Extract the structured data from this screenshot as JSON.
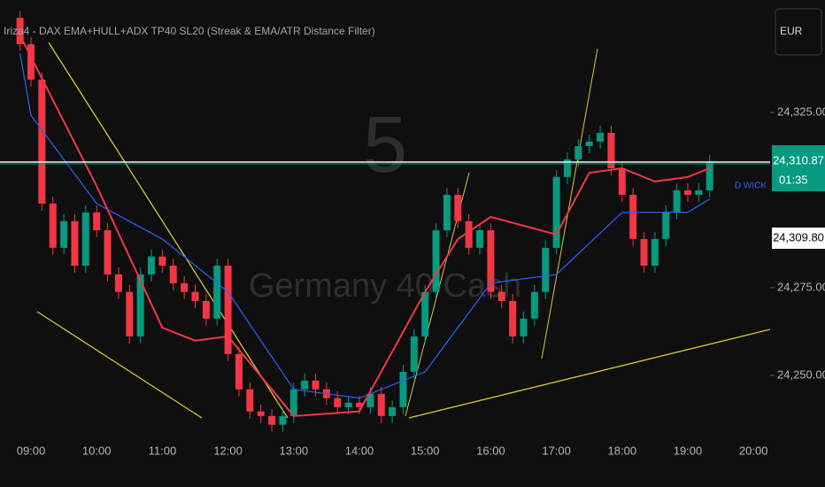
{
  "chart_data": {
    "type": "candlestick",
    "title": "Iriza4 - DAX EMA+HULL+ADX TP40 SL20 (Streak & EMA/ATR Distance Filter)",
    "watermark_interval": "5",
    "watermark_symbol": "Germany 40 Cash",
    "currency": "EUR",
    "up_color": "#089981",
    "down_color": "#f23645",
    "x": [
      "08:50",
      "09:00",
      "09:10",
      "09:20",
      "09:30",
      "09:40",
      "09:50",
      "10:00",
      "10:10",
      "10:20",
      "10:30",
      "10:40",
      "10:50",
      "11:00",
      "11:10",
      "11:20",
      "11:30",
      "11:40",
      "11:50",
      "12:00",
      "12:10",
      "12:20",
      "12:30",
      "12:40",
      "12:50",
      "13:00",
      "13:10",
      "13:20",
      "13:30",
      "13:40",
      "13:50",
      "14:00",
      "14:10",
      "14:20",
      "14:30",
      "14:40",
      "14:50",
      "15:00",
      "15:10",
      "15:20",
      "15:30",
      "15:40",
      "15:50",
      "16:00",
      "16:10",
      "16:20",
      "16:30",
      "16:40",
      "16:50",
      "17:00",
      "17:10",
      "17:20",
      "17:30",
      "17:40",
      "17:50",
      "18:00",
      "18:10",
      "18:20",
      "18:30",
      "18:40",
      "18:50",
      "19:00",
      "19:10",
      "19:20"
    ],
    "open": [
      24352.0,
      24344.5,
      24334.4,
      24299.0,
      24286.4,
      24294.0,
      24281.3,
      24296.5,
      24291.4,
      24278.8,
      24273.8,
      24261.1,
      24278.8,
      24283.9,
      24281.3,
      24276.3,
      24273.8,
      24271.2,
      24266.2,
      24281.3,
      24256.1,
      24246.0,
      24239.7,
      24238.4,
      24235.9,
      24238.4,
      24246.0,
      24248.5,
      24246.0,
      24243.5,
      24240.9,
      24242.2,
      24240.9,
      24244.7,
      24238.4,
      24240.9,
      24251.0,
      24261.1,
      24273.8,
      24291.4,
      24301.5,
      24294.0,
      24286.4,
      24291.4,
      24273.8,
      24271.2,
      24261.1,
      24266.2,
      24273.8,
      24286.4,
      24306.6,
      24311.6,
      24315.4,
      24316.7,
      24319.2,
      24309.1,
      24301.5,
      24288.9,
      24281.3,
      24288.9,
      24296.5,
      24302.8,
      24301.5,
      24302.8
    ],
    "high": [
      24354.0,
      24346.5,
      24336.4,
      24301.0,
      24296.0,
      24296.0,
      24298.5,
      24298.5,
      24293.4,
      24280.8,
      24275.8,
      24280.8,
      24285.9,
      24285.9,
      24283.3,
      24278.3,
      24275.8,
      24273.2,
      24283.3,
      24283.3,
      24258.1,
      24248.0,
      24241.7,
      24240.4,
      24240.4,
      24248.0,
      24250.5,
      24250.5,
      24248.0,
      24245.5,
      24244.2,
      24244.2,
      24246.7,
      24246.7,
      24242.9,
      24253.0,
      24263.1,
      24275.8,
      24293.4,
      24303.5,
      24303.5,
      24296.0,
      24293.4,
      24293.4,
      24275.8,
      24273.2,
      24268.2,
      24275.8,
      24288.4,
      24308.6,
      24313.6,
      24317.4,
      24318.7,
      24321.2,
      24321.2,
      24311.1,
      24303.5,
      24290.9,
      24290.9,
      24298.5,
      24304.8,
      24304.8,
      24304.8,
      24312.9
    ],
    "low": [
      24342.5,
      24332.4,
      24297.0,
      24284.4,
      24284.4,
      24279.3,
      24279.3,
      24289.4,
      24276.8,
      24271.8,
      24259.1,
      24259.1,
      24276.8,
      24279.3,
      24274.3,
      24271.8,
      24269.2,
      24264.2,
      24264.2,
      24254.1,
      24244.0,
      24237.7,
      24236.4,
      24233.9,
      24233.9,
      24236.4,
      24244.0,
      24244.0,
      24241.5,
      24238.9,
      24238.9,
      24238.9,
      24238.9,
      24236.4,
      24236.4,
      24238.9,
      24249.0,
      24259.1,
      24271.8,
      24289.4,
      24292.0,
      24284.4,
      24284.4,
      24271.8,
      24269.2,
      24259.1,
      24259.1,
      24264.2,
      24271.8,
      24284.4,
      24304.6,
      24309.6,
      24313.4,
      24314.7,
      24307.1,
      24299.5,
      24286.9,
      24279.3,
      24279.3,
      24286.9,
      24294.5,
      24299.5,
      24299.5,
      24300.8
    ],
    "close": [
      24344.5,
      24334.4,
      24299.0,
      24286.4,
      24294.0,
      24281.3,
      24296.5,
      24291.4,
      24278.8,
      24273.8,
      24261.1,
      24278.8,
      24283.9,
      24281.3,
      24276.3,
      24273.8,
      24271.2,
      24266.2,
      24281.3,
      24256.1,
      24246.0,
      24239.7,
      24238.4,
      24235.9,
      24238.4,
      24246.0,
      24248.5,
      24246.0,
      24243.5,
      24240.9,
      24242.2,
      24240.9,
      24244.7,
      24238.4,
      24240.9,
      24251.0,
      24261.1,
      24273.8,
      24291.4,
      24301.5,
      24294.0,
      24286.4,
      24291.4,
      24273.8,
      24271.2,
      24261.1,
      24266.2,
      24273.8,
      24286.4,
      24306.6,
      24311.6,
      24315.4,
      24316.7,
      24319.2,
      24309.1,
      24301.5,
      24288.9,
      24281.3,
      24288.9,
      24296.5,
      24302.8,
      24301.5,
      24302.8,
      24310.9
    ],
    "series": [
      {
        "color": "#2962ff",
        "x": [
          "08:50",
          "09:00",
          "10:00",
          "11:00",
          "12:00",
          "13:00",
          "14:00",
          "15:00",
          "16:00",
          "17:00",
          "18:00",
          "19:00",
          "19:20"
        ],
        "values": [
          24341.9,
          24324.2,
          24299.0,
          24288.9,
          24273.8,
          24246.0,
          24243.5,
          24251.0,
          24276.3,
          24278.8,
          24296.5,
          24296.5,
          24300.3
        ]
      },
      {
        "color": "#f23645",
        "x": [
          "08:50",
          "10:00",
          "11:00",
          "11:30",
          "12:00",
          "13:00",
          "14:00",
          "15:00",
          "15:30",
          "16:00",
          "17:00",
          "17:30",
          "18:00",
          "18:30",
          "19:00",
          "19:20"
        ],
        "values": [
          24347.0,
          24304.0,
          24263.6,
          24259.9,
          24261.1,
          24238.4,
          24239.7,
          24273.8,
          24288.9,
          24295.2,
          24290.2,
          24307.8,
          24309.1,
          24305.3,
          24306.6,
          24309.1
        ]
      }
    ],
    "last_price": {
      "value": 24310.87,
      "label": "24,310.87"
    },
    "countdown": "01:35",
    "other_price": {
      "value": 24309.8,
      "label": "24,309.80"
    },
    "wick_label": "D WICK",
    "xticks": [
      "09:00",
      "10:00",
      "11:00",
      "12:00",
      "13:00",
      "14:00",
      "15:00",
      "16:00",
      "17:00",
      "18:00",
      "19:00",
      "20:00"
    ],
    "ylim": [
      24233.3,
      24357.1
    ],
    "yticks": [
      {
        "value": 24250,
        "label": "24,250.00"
      },
      {
        "value": 24275,
        "label": "24,275.00"
      },
      {
        "value": 24325,
        "label": "24,325.00"
      }
    ]
  }
}
